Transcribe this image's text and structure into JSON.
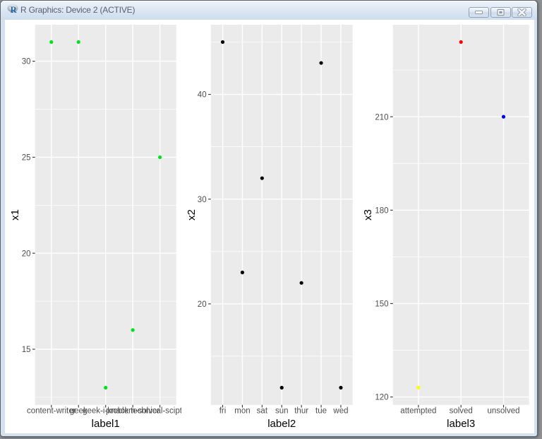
{
  "window": {
    "title": "R Graphics: Device 2 (ACTIVE)",
    "icon": "r-logo",
    "buttons": [
      {
        "id": "minimize",
        "label": "minimize"
      },
      {
        "id": "maximize",
        "label": "maximize"
      },
      {
        "id": "close",
        "label": "close"
      }
    ]
  },
  "colors": {
    "panel_bg": "#EBEBEB",
    "grid": "#FFFFFF",
    "tick_mark": "#333333",
    "tick_label": "#4D4D4D",
    "axis_title": "#000000",
    "titlebar_top": "#EEF4FA",
    "titlebar_bottom": "#CFDDED",
    "frame": "#D4E1F0",
    "client_bg": "#FFFFFF",
    "backdrop": "#8D9093"
  },
  "chart_data": [
    {
      "type": "scatter",
      "xlabel": "label1",
      "ylabel": "x1",
      "categories": [
        "content-writer",
        "geek",
        "geek-i-knack",
        "problem-solver",
        "technical-scipter"
      ],
      "values": [
        31,
        31,
        13,
        16,
        25
      ],
      "point_colors": [
        "#00E31B",
        "#00E31B",
        "#00E31B",
        "#00E31B",
        "#00E31B"
      ],
      "yticks": [
        15,
        20,
        25,
        30
      ],
      "ylim": [
        12.1,
        31.9
      ],
      "grid": true,
      "legend": "none"
    },
    {
      "type": "scatter",
      "xlabel": "label2",
      "ylabel": "x2",
      "categories": [
        "fri",
        "mon",
        "sat",
        "sun",
        "thur",
        "tue",
        "wed"
      ],
      "values": [
        45,
        23,
        32,
        12,
        22,
        43,
        12
      ],
      "point_colors": [
        "#000000",
        "#000000",
        "#000000",
        "#000000",
        "#000000",
        "#000000",
        "#000000"
      ],
      "yticks": [
        20,
        30,
        40
      ],
      "ylim": [
        10.35,
        46.65
      ],
      "grid": true,
      "legend": "none"
    },
    {
      "type": "scatter",
      "xlabel": "label3",
      "ylabel": "x3",
      "categories": [
        "attempted",
        "solved",
        "unsolved"
      ],
      "values": [
        123,
        234,
        210
      ],
      "point_colors": [
        "#FFFF00",
        "#FF0000",
        "#0000FF"
      ],
      "yticks": [
        120,
        150,
        180,
        210
      ],
      "ylim": [
        117.45,
        239.55
      ],
      "grid": true,
      "legend": "none"
    }
  ]
}
